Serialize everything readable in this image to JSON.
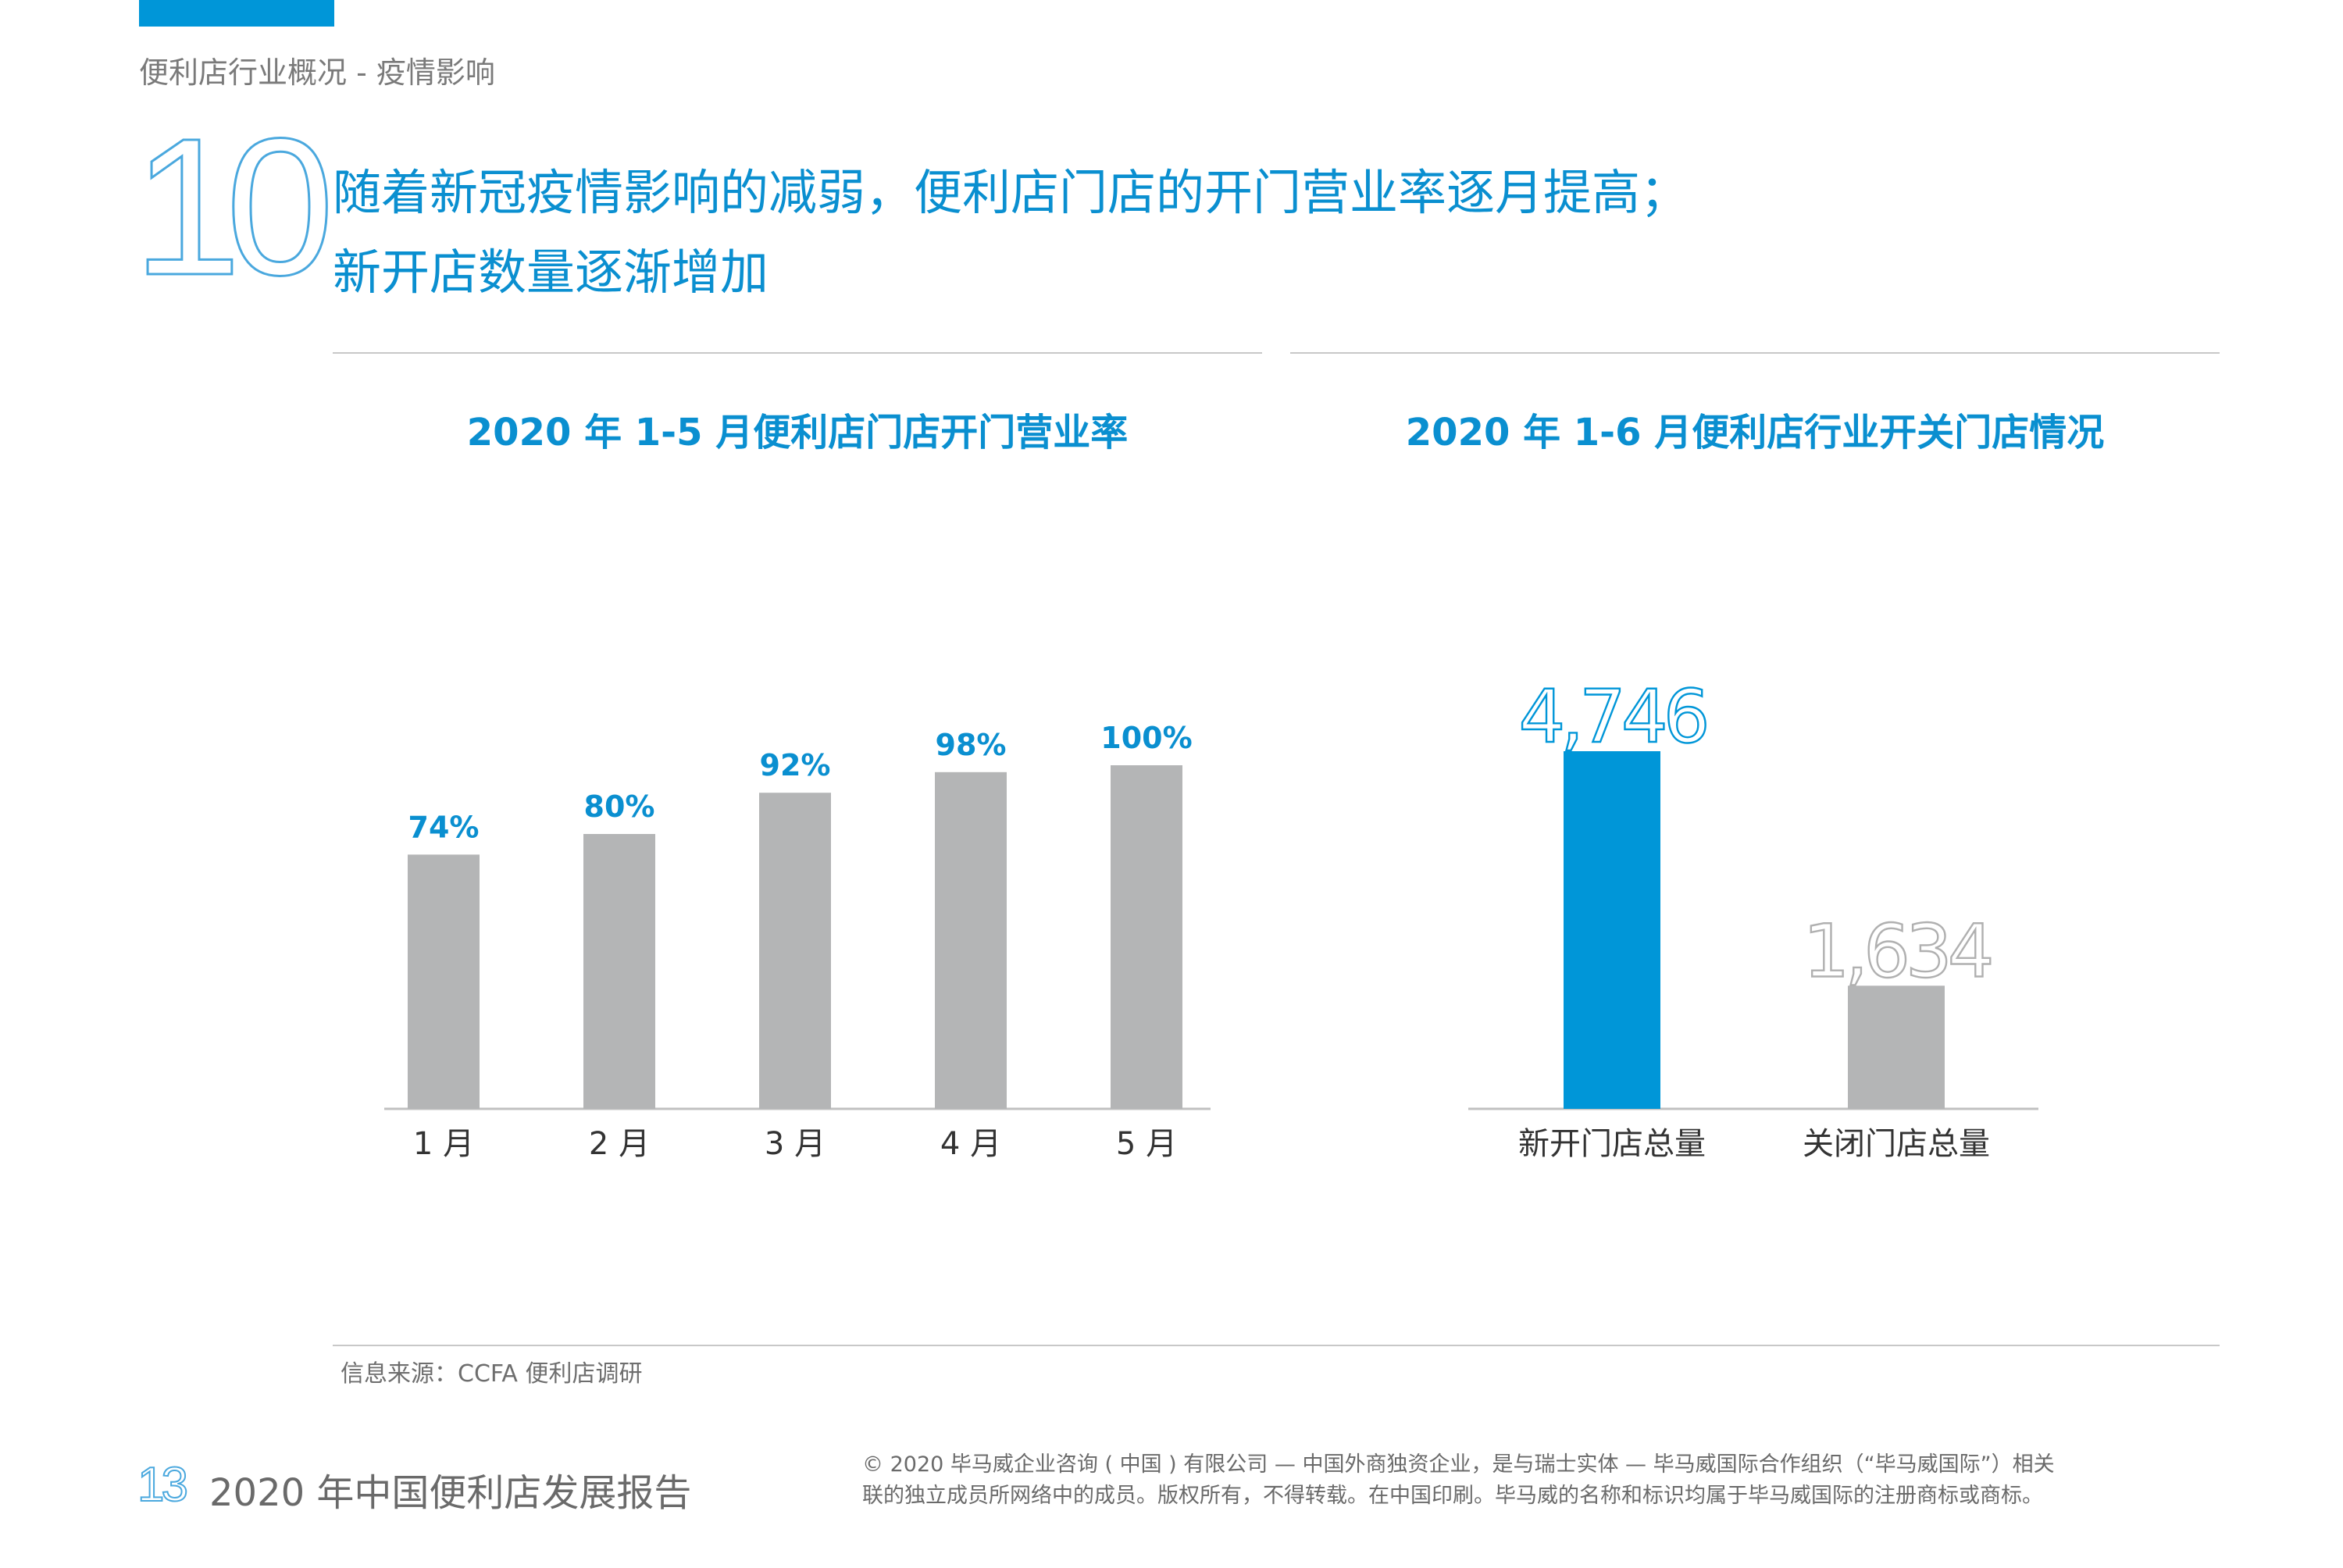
{
  "header": {
    "section_label": "便利店行业概况 - 疫情影响",
    "number": "10",
    "headline_line1": "随着新冠疫情影响的减弱，便利店门店的开门营业率逐月提高；",
    "headline_line2": "新开店数量逐渐增加"
  },
  "colors": {
    "accent": "#0096d8",
    "title_blue": "#0a8fd0",
    "bar_gray": "#b4b5b6",
    "light_gray_label": "#b0b0b0"
  },
  "chart_data": [
    {
      "type": "bar",
      "title": "2020 年 1-5 月便利店门店开门营业率",
      "categories": [
        "1 月",
        "2 月",
        "3 月",
        "4 月",
        "5 月"
      ],
      "values": [
        74,
        80,
        92,
        98,
        100
      ],
      "value_labels": [
        "74%",
        "80%",
        "92%",
        "98%",
        "100%"
      ],
      "ylim": [
        0,
        100
      ],
      "grid": false
    },
    {
      "type": "bar",
      "title": "2020 年 1-6 月便利店行业开关门店情况",
      "categories": [
        "新开门店总量",
        "关闭门店总量"
      ],
      "values": [
        4746,
        1634
      ],
      "value_labels": [
        "4,746",
        "1,634"
      ],
      "bar_colors": [
        "#0096d8",
        "#b4b5b6"
      ],
      "ylim": [
        0,
        4746
      ],
      "grid": false
    }
  ],
  "footer": {
    "source": "信息来源：CCFA 便利店调研",
    "page_number": "13",
    "report_title": "2020 年中国便利店发展报告",
    "copyright_line1": "© 2020 毕马威企业咨询 ( 中国 ) 有限公司 — 中国外商独资企业，是与瑞士实体 — 毕马威国际合作组织（“毕马威国际”）相关",
    "copyright_line2": "联的独立成员所网络中的成员。版权所有，不得转载。在中国印刷。毕马威的名称和标识均属于毕马威国际的注册商标或商标。"
  }
}
